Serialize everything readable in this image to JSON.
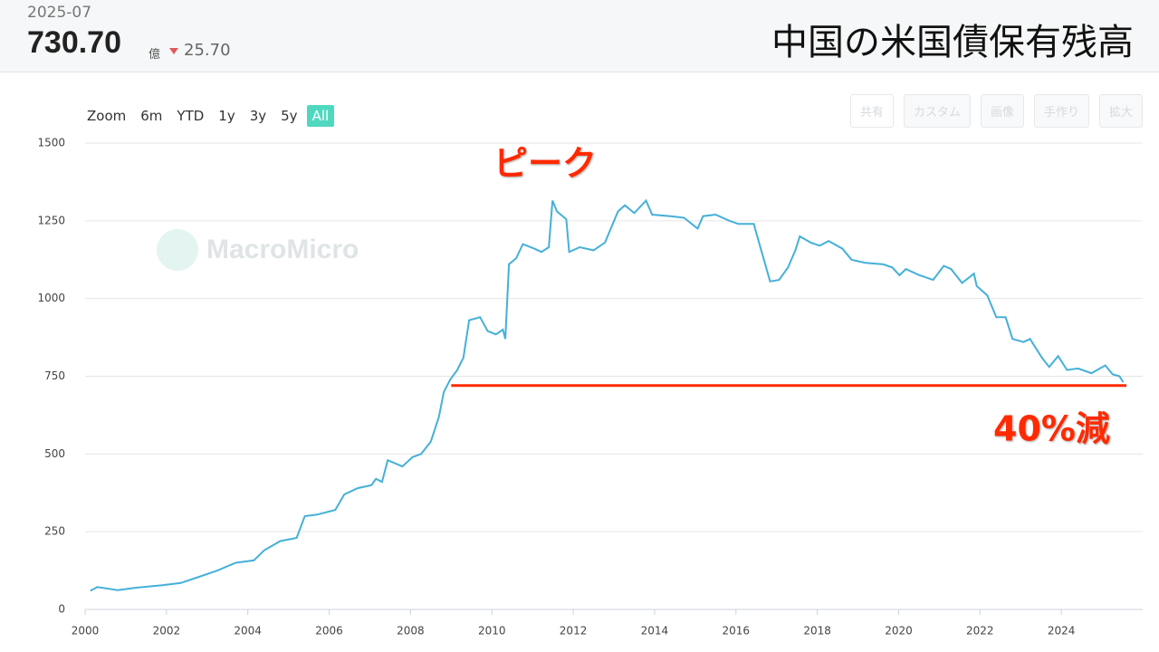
{
  "header": {
    "date": "2025-07",
    "value": "730.70",
    "unit": "億",
    "change": "25.70",
    "title": "中国の米国債保有残高"
  },
  "range_selector": [
    "Zoom",
    "6m",
    "YTD",
    "1y",
    "3y",
    "5y",
    "All"
  ],
  "toolbar": [
    "共有",
    "カスタム",
    "画像",
    "手作り",
    "拡大"
  ],
  "watermark": "MacroMicro",
  "chart_data": {
    "type": "line",
    "x": [
      2000.13,
      2000.3,
      2000.8,
      2001.25,
      2001.9,
      2002.35,
      2002.8,
      2003.25,
      2003.7,
      2004.15,
      2004.4,
      2004.8,
      2005.2,
      2005.4,
      2005.7,
      2006.15,
      2006.37,
      2006.7,
      2007.04,
      2007.15,
      2007.3,
      2007.44,
      2007.8,
      2008.05,
      2008.26,
      2008.5,
      2008.7,
      2008.82,
      2008.98,
      2009.15,
      2009.3,
      2009.44,
      2009.71,
      2009.9,
      2010.1,
      2010.27,
      2010.33,
      2010.42,
      2010.6,
      2010.76,
      2011.05,
      2011.22,
      2011.4,
      2011.49,
      2011.6,
      2011.83,
      2011.9,
      2012.16,
      2012.5,
      2012.78,
      2012.94,
      2013.1,
      2013.27,
      2013.5,
      2013.79,
      2013.94,
      2014.39,
      2014.72,
      2015.06,
      2015.19,
      2015.5,
      2015.84,
      2016.06,
      2016.44,
      2016.6,
      2016.84,
      2017.06,
      2017.28,
      2017.46,
      2017.57,
      2017.84,
      2018.06,
      2018.28,
      2018.62,
      2018.84,
      2019.18,
      2019.62,
      2019.84,
      2020.02,
      2020.18,
      2020.51,
      2020.85,
      2021.11,
      2021.29,
      2021.56,
      2021.85,
      2021.92,
      2022.18,
      2022.4,
      2022.63,
      2022.8,
      2023.07,
      2023.23,
      2023.52,
      2023.7,
      2023.92,
      2024.14,
      2024.41,
      2024.74,
      2025.08,
      2025.26,
      2025.43,
      2025.52
    ],
    "series": [
      {
        "name": "中国の米国債保有残高",
        "color": "#45b0d8",
        "values": [
          60,
          72,
          62,
          70,
          78,
          85,
          105,
          125,
          150,
          158,
          190,
          220,
          230,
          300,
          305,
          320,
          370,
          390,
          400,
          420,
          410,
          480,
          460,
          490,
          500,
          540,
          620,
          700,
          740,
          770,
          810,
          930,
          940,
          895,
          885,
          900,
          870,
          1110,
          1130,
          1175,
          1160,
          1150,
          1165,
          1315,
          1280,
          1255,
          1150,
          1165,
          1155,
          1180,
          1230,
          1280,
          1300,
          1275,
          1315,
          1270,
          1265,
          1260,
          1225,
          1265,
          1270,
          1250,
          1240,
          1240,
          1165,
          1055,
          1060,
          1100,
          1155,
          1200,
          1180,
          1170,
          1185,
          1160,
          1125,
          1115,
          1110,
          1100,
          1075,
          1095,
          1075,
          1060,
          1105,
          1095,
          1050,
          1080,
          1040,
          1010,
          940,
          940,
          870,
          860,
          870,
          810,
          780,
          815,
          770,
          775,
          760,
          785,
          756,
          750,
          730.7
        ]
      }
    ],
    "xlim": [
      2000,
      2026
    ],
    "xticks": [
      2000,
      2002,
      2004,
      2006,
      2008,
      2010,
      2012,
      2014,
      2016,
      2018,
      2020,
      2022,
      2024
    ],
    "ylim": [
      0,
      1500
    ],
    "yticks": [
      0,
      250,
      500,
      750,
      1000,
      1250,
      1500
    ],
    "grid": true,
    "annotations": [
      {
        "text": "ピーク",
        "color": "#ff2a00"
      },
      {
        "text": "40%減",
        "color": "#ff2a00"
      }
    ],
    "reference_line": {
      "value": 720,
      "from": 2009,
      "to": 2025.6,
      "color": "#ff2a00"
    }
  }
}
